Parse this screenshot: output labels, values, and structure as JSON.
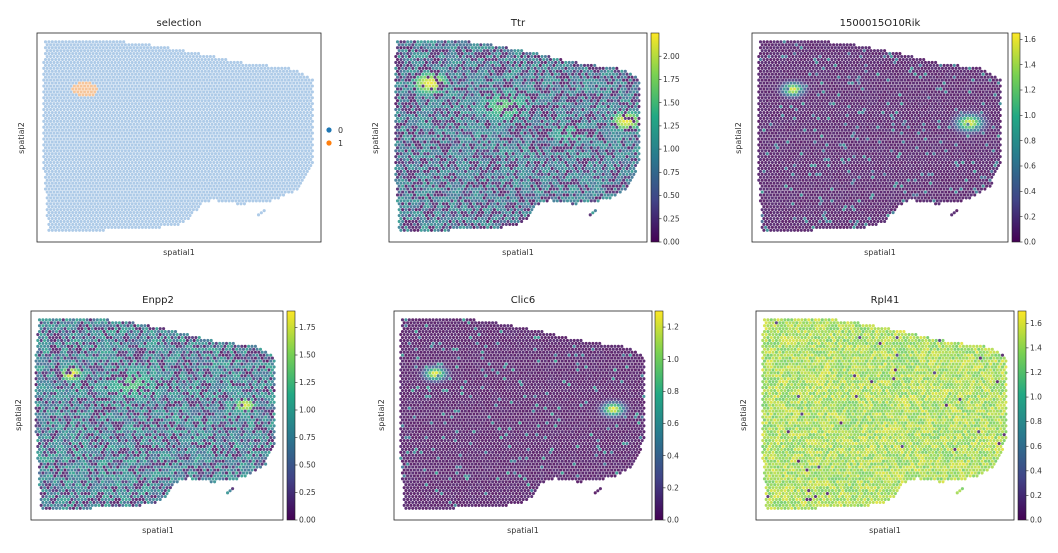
{
  "figure": {
    "colormap": [
      "#440154",
      "#414487",
      "#2a788e",
      "#22a884",
      "#7ad151",
      "#fde725"
    ],
    "tissue_background": "#ffffff"
  },
  "chart_data": [
    {
      "type": "scatter",
      "title": "selection",
      "xlabel": "spatial1",
      "ylabel": "spatial2",
      "categorical": true,
      "legend": {
        "placement": "right",
        "entries": [
          {
            "label": "0",
            "color": "#1f77b4"
          },
          {
            "label": "1",
            "color": "#ff7f0e"
          }
        ]
      },
      "spot_colors": {
        "0": "#aecbe8",
        "1": "#f6c59a"
      },
      "hotspots": []
    },
    {
      "type": "scatter",
      "title": "Ttr",
      "xlabel": "spatial1",
      "ylabel": "spatial2",
      "colorbar": {
        "min": 0.0,
        "max": 2.25,
        "ticks": [
          "0.00",
          "0.25",
          "0.50",
          "0.75",
          "1.00",
          "1.25",
          "1.50",
          "1.75",
          "2.00"
        ]
      },
      "base_level": 0.9,
      "noise": 0.55,
      "low_fraction": 0.35,
      "hotspots": [
        {
          "x": 0.16,
          "y": 0.24,
          "value": 2.2,
          "spread": 0.09
        },
        {
          "x": 0.92,
          "y": 0.42,
          "value": 2.2,
          "spread": 0.08
        },
        {
          "x": 0.45,
          "y": 0.35,
          "value": 1.6,
          "spread": 0.15
        },
        {
          "x": 0.7,
          "y": 0.48,
          "value": 1.4,
          "spread": 0.12
        }
      ]
    },
    {
      "type": "scatter",
      "title": "1500015O10Rik",
      "xlabel": "spatial1",
      "ylabel": "spatial2",
      "colorbar": {
        "min": 0.0,
        "max": 1.65,
        "ticks": [
          "0.0",
          "0.2",
          "0.4",
          "0.6",
          "0.8",
          "1.0",
          "1.2",
          "1.4",
          "1.6"
        ]
      },
      "base_level": 0.05,
      "noise": 0.1,
      "low_fraction": 0.0,
      "sparse": {
        "fraction": 0.06,
        "value": 0.8
      },
      "hotspots": [
        {
          "x": 0.16,
          "y": 0.27,
          "value": 1.6,
          "spread": 0.04
        },
        {
          "x": 0.85,
          "y": 0.43,
          "value": 1.6,
          "spread": 0.05
        }
      ]
    },
    {
      "type": "scatter",
      "title": "Enpp2",
      "xlabel": "spatial1",
      "ylabel": "spatial2",
      "colorbar": {
        "min": 0.0,
        "max": 1.9,
        "ticks": [
          "0.00",
          "0.25",
          "0.50",
          "0.75",
          "1.00",
          "1.25",
          "1.50",
          "1.75"
        ]
      },
      "base_level": 0.8,
      "noise": 0.55,
      "low_fraction": 0.3,
      "hotspots": [
        {
          "x": 0.16,
          "y": 0.3,
          "value": 1.9,
          "spread": 0.06
        },
        {
          "x": 0.85,
          "y": 0.45,
          "value": 1.8,
          "spread": 0.06
        },
        {
          "x": 0.4,
          "y": 0.35,
          "value": 1.3,
          "spread": 0.16
        }
      ]
    },
    {
      "type": "scatter",
      "title": "Clic6",
      "xlabel": "spatial1",
      "ylabel": "spatial2",
      "colorbar": {
        "min": 0.0,
        "max": 1.3,
        "ticks": [
          "0.0",
          "0.2",
          "0.4",
          "0.6",
          "0.8",
          "1.0",
          "1.2"
        ]
      },
      "base_level": 0.03,
      "noise": 0.08,
      "low_fraction": 0.0,
      "sparse": {
        "fraction": 0.05,
        "value": 0.7
      },
      "hotspots": [
        {
          "x": 0.16,
          "y": 0.3,
          "value": 1.3,
          "spread": 0.04
        },
        {
          "x": 0.85,
          "y": 0.47,
          "value": 1.3,
          "spread": 0.04
        }
      ]
    },
    {
      "type": "scatter",
      "title": "Rpl41",
      "xlabel": "spatial1",
      "ylabel": "spatial2",
      "colorbar": {
        "min": 0.0,
        "max": 1.7,
        "ticks": [
          "0.0",
          "0.2",
          "0.4",
          "0.6",
          "0.8",
          "1.0",
          "1.2",
          "1.4",
          "1.6"
        ]
      },
      "base_level": 1.45,
      "noise": 0.35,
      "low_fraction": 0.01,
      "hotspots": []
    }
  ]
}
